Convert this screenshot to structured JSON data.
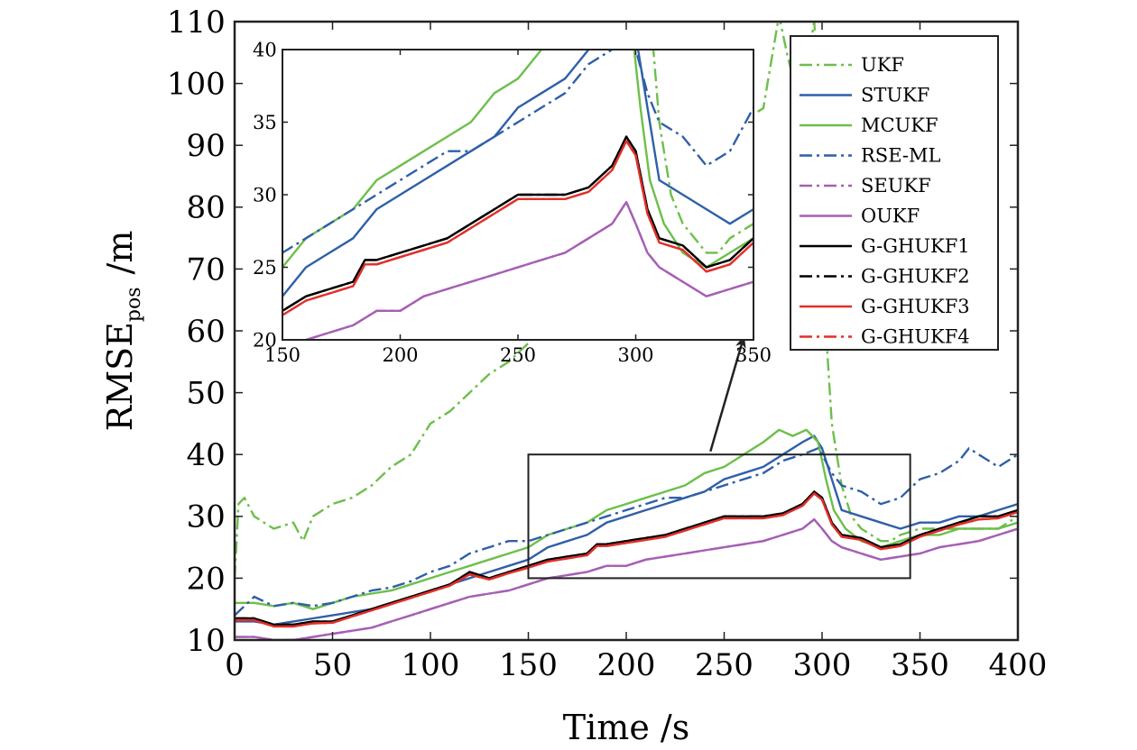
{
  "chart_data": {
    "type": "line",
    "title": "",
    "xlabel": "Time /s",
    "ylabel": "RMSE",
    "ylabel_sub": "pos",
    "ylabel_unit": "/m",
    "xlim": [
      0,
      400
    ],
    "ylim": [
      10,
      110
    ],
    "xticks": [
      0,
      50,
      100,
      150,
      200,
      250,
      300,
      350,
      400
    ],
    "yticks": [
      10,
      20,
      30,
      40,
      50,
      60,
      70,
      80,
      90,
      100,
      110
    ],
    "grid": false,
    "legend_position": "top-right",
    "series": [
      {
        "name": "UKF",
        "color": "#6dbf4a",
        "dash": "dashdot",
        "x": [
          0,
          2,
          5,
          10,
          20,
          30,
          35,
          40,
          50,
          60,
          70,
          80,
          90,
          100,
          110,
          120,
          130,
          140,
          150,
          160,
          170,
          180,
          190,
          200,
          210,
          220,
          230,
          240,
          250,
          260,
          270,
          278,
          282,
          288,
          292,
          296,
          298,
          300,
          302,
          305,
          310,
          315,
          320,
          325,
          330,
          335,
          340,
          350,
          360,
          370,
          380,
          390,
          400
        ],
        "y": [
          20,
          32,
          33,
          30,
          28,
          29,
          26,
          30,
          32,
          33,
          35,
          38,
          40,
          45,
          47,
          50,
          53,
          55,
          58,
          61,
          64,
          68,
          72,
          75,
          77,
          80,
          83,
          87,
          90,
          94,
          96,
          111,
          105,
          97,
          102,
          110,
          100,
          80,
          60,
          45,
          35,
          30,
          28,
          27,
          26,
          26,
          27,
          28,
          28,
          28,
          28,
          28,
          30
        ]
      },
      {
        "name": "STUKF",
        "color": "#2f5fa8",
        "dash": "solid",
        "x": [
          0,
          10,
          20,
          30,
          40,
          50,
          60,
          70,
          80,
          90,
          100,
          110,
          120,
          130,
          140,
          150,
          160,
          170,
          180,
          190,
          200,
          210,
          220,
          230,
          240,
          250,
          260,
          270,
          280,
          290,
          296,
          300,
          305,
          310,
          320,
          330,
          340,
          350,
          360,
          370,
          380,
          390,
          400
        ],
        "y": [
          13,
          13,
          12.5,
          13,
          13.5,
          14,
          14.5,
          15,
          16,
          17,
          18,
          19,
          20,
          21,
          22,
          23,
          25,
          26,
          27,
          29,
          30,
          31,
          32,
          33,
          34,
          36,
          37,
          38,
          40,
          42,
          43,
          41,
          36,
          31,
          30,
          29,
          28,
          29,
          29,
          30,
          30,
          31,
          32
        ]
      },
      {
        "name": "MCUKF",
        "color": "#6dbf4a",
        "dash": "solid",
        "x": [
          0,
          10,
          20,
          30,
          40,
          50,
          60,
          70,
          80,
          90,
          100,
          110,
          120,
          130,
          140,
          150,
          160,
          170,
          180,
          190,
          200,
          210,
          220,
          230,
          240,
          250,
          260,
          270,
          278,
          285,
          292,
          298,
          302,
          306,
          312,
          320,
          330,
          340,
          350,
          360,
          370,
          380,
          390,
          400
        ],
        "y": [
          16,
          16,
          15.5,
          16,
          15,
          16,
          17,
          17.5,
          18,
          19,
          20,
          21,
          22,
          23,
          24,
          25,
          27,
          28,
          29,
          31,
          32,
          33,
          34,
          35,
          37,
          38,
          40,
          42,
          44,
          43,
          44,
          42,
          36,
          31,
          28,
          26,
          25,
          26,
          27,
          27,
          28,
          28,
          28,
          29
        ]
      },
      {
        "name": "RSE-ML",
        "color": "#2f5fa8",
        "dash": "dashdot",
        "x": [
          0,
          10,
          20,
          30,
          40,
          50,
          60,
          70,
          80,
          90,
          100,
          110,
          120,
          130,
          140,
          150,
          160,
          170,
          180,
          190,
          200,
          210,
          220,
          230,
          240,
          250,
          260,
          270,
          280,
          290,
          298,
          300,
          305,
          310,
          320,
          330,
          340,
          350,
          360,
          370,
          375,
          380,
          390,
          400
        ],
        "y": [
          14,
          17,
          15.5,
          16,
          15.5,
          16,
          17,
          18,
          18.5,
          19.5,
          21,
          22,
          24,
          25,
          26,
          26,
          27,
          28,
          29,
          30,
          31,
          32,
          33,
          33,
          34,
          35,
          36,
          37,
          39,
          40,
          41,
          40,
          37,
          35,
          34,
          32,
          33,
          36,
          37,
          39,
          41,
          40,
          38,
          40
        ]
      },
      {
        "name": "SEUKF",
        "color": "#a65fb4",
        "dash": "dashdot",
        "x": [
          0,
          10,
          20,
          30,
          40,
          50,
          60,
          70,
          80,
          90,
          100,
          110,
          120,
          130,
          140,
          150,
          160,
          170,
          180,
          190,
          200,
          210,
          220,
          230,
          240,
          250,
          260,
          270,
          280,
          290,
          296,
          300,
          305,
          310,
          320,
          330,
          340,
          350,
          360,
          370,
          380,
          390,
          400
        ],
        "y": [
          10.5,
          10.5,
          10,
          10,
          10.5,
          11,
          11.5,
          12,
          13,
          14,
          15,
          16,
          17,
          17.5,
          18,
          19,
          20,
          20.5,
          21,
          22,
          22,
          23,
          23.5,
          24,
          24.5,
          25,
          25.5,
          26,
          27,
          28,
          29.5,
          28,
          26,
          25,
          24,
          23,
          23.5,
          24,
          25,
          25.5,
          26,
          27,
          28
        ]
      },
      {
        "name": "OUKF",
        "color": "#a65fb4",
        "dash": "solid",
        "x": [
          0,
          10,
          20,
          30,
          40,
          50,
          60,
          70,
          80,
          90,
          100,
          110,
          120,
          130,
          140,
          150,
          160,
          170,
          180,
          190,
          200,
          210,
          220,
          230,
          240,
          250,
          260,
          270,
          280,
          290,
          296,
          300,
          305,
          310,
          320,
          330,
          340,
          350,
          360,
          370,
          380,
          390,
          400
        ],
        "y": [
          10.5,
          10.5,
          10,
          10,
          10.5,
          11,
          11.5,
          12,
          13,
          14,
          15,
          16,
          17,
          17.5,
          18,
          19,
          20,
          20.5,
          21,
          22,
          22,
          23,
          23.5,
          24,
          24.5,
          25,
          25.5,
          26,
          27,
          28,
          29.5,
          28,
          26,
          25,
          24,
          23,
          23.5,
          24,
          25,
          25.5,
          26,
          27,
          28
        ]
      },
      {
        "name": "G-GHUKF1",
        "color": "#000000",
        "dash": "solid",
        "x": [
          0,
          10,
          20,
          30,
          40,
          50,
          60,
          70,
          80,
          90,
          100,
          110,
          120,
          130,
          140,
          150,
          160,
          170,
          180,
          185,
          190,
          200,
          210,
          220,
          230,
          240,
          250,
          260,
          270,
          280,
          290,
          296,
          300,
          305,
          310,
          320,
          330,
          340,
          350,
          360,
          370,
          380,
          390,
          400
        ],
        "y": [
          13.5,
          13.5,
          12.5,
          12.5,
          13,
          13,
          14,
          15,
          16,
          17,
          18,
          19,
          21,
          20,
          21,
          22,
          23,
          23.5,
          24,
          25.5,
          25.5,
          26,
          26.5,
          27,
          28,
          29,
          30,
          30,
          30,
          30.5,
          32,
          34,
          33,
          29,
          27,
          26.5,
          25,
          25.5,
          27,
          28,
          29,
          30,
          30,
          31
        ]
      },
      {
        "name": "G-GHUKF2",
        "color": "#000000",
        "dash": "dashdot",
        "x": [
          0,
          10,
          20,
          30,
          40,
          50,
          60,
          70,
          80,
          90,
          100,
          110,
          120,
          130,
          140,
          150,
          160,
          170,
          180,
          185,
          190,
          200,
          210,
          220,
          230,
          240,
          250,
          260,
          270,
          280,
          290,
          296,
          300,
          305,
          310,
          320,
          330,
          340,
          350,
          360,
          370,
          380,
          390,
          400
        ],
        "y": [
          13.5,
          13.5,
          12.5,
          12.5,
          13,
          13,
          14,
          15,
          16,
          17,
          18,
          19,
          21,
          20,
          21,
          22,
          23,
          23.5,
          24,
          25.5,
          25.5,
          26,
          26.5,
          27,
          28,
          29,
          30,
          30,
          30,
          30.5,
          32,
          34,
          33,
          29,
          27,
          26.5,
          25,
          25.5,
          27,
          28,
          29,
          30,
          30,
          31
        ]
      },
      {
        "name": "G-GHUKF3",
        "color": "#e0302a",
        "dash": "solid",
        "x": [
          0,
          10,
          20,
          30,
          40,
          50,
          60,
          70,
          80,
          90,
          100,
          110,
          120,
          130,
          140,
          150,
          160,
          170,
          180,
          185,
          190,
          200,
          210,
          220,
          230,
          240,
          250,
          260,
          270,
          280,
          290,
          296,
          300,
          305,
          310,
          320,
          330,
          340,
          350,
          360,
          370,
          380,
          390,
          400
        ],
        "y": [
          13.2,
          13.2,
          12.2,
          12.2,
          12.7,
          12.8,
          13.8,
          14.8,
          15.8,
          16.8,
          17.8,
          18.8,
          20.6,
          19.8,
          20.8,
          21.7,
          22.7,
          23.2,
          23.7,
          25.2,
          25.2,
          25.7,
          26.2,
          26.7,
          27.7,
          28.7,
          29.7,
          29.7,
          29.7,
          30.2,
          31.7,
          33.7,
          32.7,
          28.7,
          26.7,
          26.2,
          24.7,
          25.2,
          26.7,
          27.7,
          28.7,
          29.5,
          29.7,
          30.7
        ]
      },
      {
        "name": "G-GHUKF4",
        "color": "#e0302a",
        "dash": "dashdot",
        "x": [
          0,
          10,
          20,
          30,
          40,
          50,
          60,
          70,
          80,
          90,
          100,
          110,
          120,
          130,
          140,
          150,
          160,
          170,
          180,
          185,
          190,
          200,
          210,
          220,
          230,
          240,
          250,
          260,
          270,
          280,
          290,
          296,
          300,
          305,
          310,
          320,
          330,
          340,
          350,
          360,
          370,
          380,
          390,
          400
        ],
        "y": [
          13.2,
          13.2,
          12.2,
          12.2,
          12.7,
          12.8,
          13.8,
          14.8,
          15.8,
          16.8,
          17.8,
          18.8,
          20.6,
          19.8,
          20.8,
          21.7,
          22.7,
          23.2,
          23.7,
          25.2,
          25.2,
          25.7,
          26.2,
          26.7,
          27.7,
          28.7,
          29.7,
          29.7,
          29.7,
          30.2,
          31.7,
          33.7,
          32.7,
          28.7,
          26.7,
          26.2,
          24.7,
          25.2,
          26.7,
          27.7,
          28.7,
          29.5,
          29.7,
          30.7
        ]
      }
    ],
    "zoom_region": {
      "xlim": [
        150,
        345
      ],
      "ylim": [
        20,
        40
      ]
    },
    "inset": {
      "xlim": [
        150,
        350
      ],
      "ylim": [
        20,
        40
      ],
      "xticks": [
        150,
        200,
        250,
        300,
        350
      ],
      "yticks": [
        20,
        25,
        30,
        35,
        40
      ],
      "arrow_target": [
        260,
        59
      ]
    }
  }
}
